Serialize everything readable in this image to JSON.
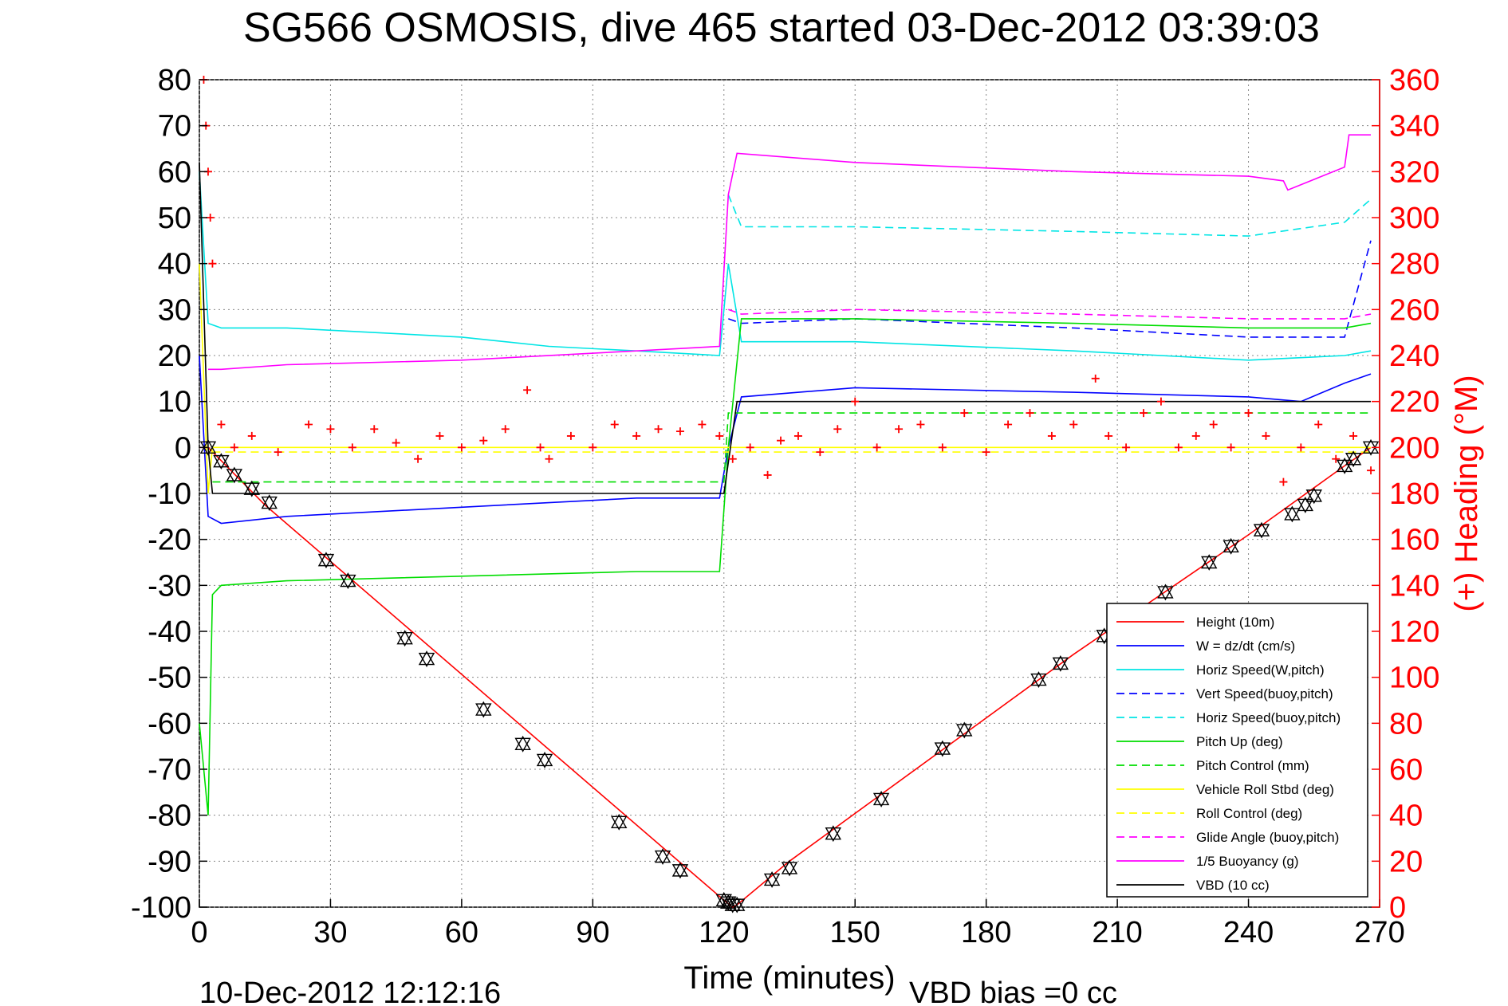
{
  "chart_data": {
    "type": "line",
    "title": "SG566 OSMOSIS, dive 465 started 03-Dec-2012 03:39:03",
    "xlabel": "Time (minutes)",
    "ylabel_right": "(+) Heading (°M)",
    "footer_left": "10-Dec-2012 12:12:16",
    "footer_right": "VBD bias =0 cc",
    "grid": true,
    "legend_position": "bottom-right",
    "xlim": [
      0,
      270
    ],
    "ylim": [
      -100,
      80
    ],
    "ylim_right": [
      0,
      360
    ],
    "xticks": [
      0,
      30,
      60,
      90,
      120,
      150,
      180,
      210,
      240,
      270
    ],
    "yticks": [
      80,
      70,
      60,
      50,
      40,
      30,
      20,
      10,
      0,
      -10,
      -20,
      -30,
      -40,
      -50,
      -60,
      -70,
      -80,
      -90,
      -100
    ],
    "yticks_right": [
      360,
      340,
      320,
      300,
      280,
      260,
      240,
      220,
      200,
      180,
      160,
      140,
      120,
      100,
      80,
      60,
      40,
      20,
      0
    ],
    "colors": {
      "axis_right": "#ff0000"
    },
    "series": [
      {
        "name": "Height (10m)",
        "color": "#ff0000",
        "dash": "solid",
        "x": [
          0,
          2,
          15,
          120,
          122,
          123,
          135,
          200,
          240,
          262,
          268
        ],
        "y": [
          0,
          0,
          -12.5,
          -98.5,
          -100,
          -99.5,
          -90,
          -45,
          -19,
          -4,
          0
        ]
      },
      {
        "name": "W = dz/dt (cm/s)",
        "color": "#0000ff",
        "dash": "solid",
        "x": [
          0,
          2,
          5,
          20,
          60,
          100,
          119,
          121,
          124,
          150,
          200,
          240,
          252,
          262,
          268
        ],
        "y": [
          20,
          -15,
          -16.5,
          -15,
          -13,
          -11,
          -11,
          0,
          11,
          13,
          12,
          11,
          10,
          14,
          16
        ]
      },
      {
        "name": "Horiz Speed(W,pitch)",
        "color": "#00e5e5",
        "dash": "solid",
        "x": [
          0,
          2,
          5,
          20,
          60,
          80,
          100,
          119,
          121,
          124,
          150,
          200,
          240,
          262,
          268
        ],
        "y": [
          60,
          27,
          26,
          26,
          24,
          22,
          21,
          20,
          40,
          23,
          23,
          21,
          19,
          20,
          21
        ]
      },
      {
        "name": "Vert Speed(buoy,pitch)",
        "color": "#0000ff",
        "dash": "dashed",
        "x": [
          121,
          124,
          150,
          200,
          240,
          262,
          268
        ],
        "y": [
          28,
          27,
          28,
          26,
          24,
          24,
          45
        ]
      },
      {
        "name": "Horiz Speed(buoy,pitch)",
        "color": "#00e5e5",
        "dash": "dashed",
        "x": [
          121,
          124,
          150,
          200,
          240,
          262,
          268
        ],
        "y": [
          55,
          48,
          48,
          47,
          46,
          49,
          54
        ]
      },
      {
        "name": "Pitch Up (deg)",
        "color": "#00dd00",
        "dash": "solid",
        "x": [
          0,
          2,
          3,
          5,
          20,
          60,
          100,
          119,
          121,
          124,
          150,
          200,
          240,
          262,
          268
        ],
        "y": [
          -60,
          -80,
          -32,
          -30,
          -29,
          -28,
          -27,
          -27,
          0,
          28,
          28,
          27,
          26,
          26,
          27
        ]
      },
      {
        "name": "Pitch Control (mm)",
        "color": "#00dd00",
        "dash": "dashed",
        "x": [
          3,
          120,
          121,
          268
        ],
        "y": [
          -7.5,
          -7.5,
          7.5,
          7.5
        ]
      },
      {
        "name": "Vehicle Roll Stbd (deg)",
        "color": "#ffff00",
        "dash": "solid",
        "x": [
          0,
          2,
          3,
          268
        ],
        "y": [
          40,
          -10,
          0,
          0
        ]
      },
      {
        "name": "Roll Control (deg)",
        "color": "#ffff00",
        "dash": "dashed",
        "x": [
          3,
          268
        ],
        "y": [
          -1,
          -1
        ]
      },
      {
        "name": "Glide Angle (buoy,pitch)",
        "color": "#ff00ff",
        "dash": "dashed",
        "x": [
          121,
          124,
          150,
          200,
          240,
          262,
          268
        ],
        "y": [
          30,
          29,
          30,
          29,
          28,
          28,
          29
        ]
      },
      {
        "name": "1/5 Buoyancy (g)",
        "color": "#ff00ff",
        "dash": "solid",
        "x": [
          2,
          5,
          20,
          60,
          100,
          119,
          121,
          123,
          150,
          200,
          240,
          248,
          249,
          262,
          263,
          268
        ],
        "y": [
          17,
          17,
          18,
          19,
          21,
          22,
          55,
          64,
          62,
          60,
          59,
          58,
          56,
          61,
          68,
          68
        ]
      },
      {
        "name": "VBD (10 cc)",
        "color": "#000000",
        "dash": "solid",
        "x": [
          0,
          2,
          3,
          120,
          123,
          268
        ],
        "y": [
          62,
          0,
          -10,
          -10,
          10,
          10
        ]
      }
    ],
    "heading_points": {
      "name": "(+) Heading (°M)",
      "color": "#ff0000",
      "x": [
        1,
        1.5,
        2,
        2.5,
        3,
        5,
        8,
        12,
        18,
        25,
        30,
        35,
        40,
        45,
        50,
        55,
        60,
        65,
        70,
        75,
        78,
        80,
        85,
        90,
        95,
        100,
        105,
        110,
        115,
        119,
        122,
        126,
        130,
        133,
        137,
        142,
        146,
        150,
        155,
        160,
        165,
        170,
        175,
        180,
        185,
        190,
        195,
        200,
        205,
        208,
        212,
        216,
        220,
        224,
        228,
        232,
        236,
        240,
        244,
        248,
        252,
        256,
        260,
        264,
        268
      ],
      "y": [
        360,
        340,
        320,
        300,
        280,
        210,
        200,
        205,
        198,
        210,
        208,
        200,
        208,
        202,
        195,
        205,
        200,
        203,
        208,
        225,
        200,
        195,
        205,
        200,
        210,
        205,
        208,
        207,
        210,
        205,
        195,
        200,
        188,
        203,
        205,
        198,
        208,
        220,
        200,
        208,
        210,
        200,
        215,
        198,
        210,
        215,
        205,
        210,
        230,
        205,
        200,
        215,
        220,
        200,
        205,
        210,
        200,
        215,
        205,
        185,
        200,
        210,
        195,
        205,
        190
      ]
    },
    "waypoint_markers": {
      "x": [
        2,
        5,
        8,
        12,
        16,
        29,
        34,
        47,
        52,
        65,
        74,
        79,
        96,
        106,
        110,
        120,
        121,
        122,
        123,
        131,
        135,
        145,
        156,
        170,
        175,
        192,
        197,
        207,
        221,
        231,
        236,
        243,
        250,
        253,
        255,
        262,
        264,
        268
      ],
      "y": [
        0,
        -3,
        -6,
        -9,
        -12,
        -24.5,
        -29,
        -41.5,
        -46,
        -57,
        -64.5,
        -68,
        -81.5,
        -89,
        -92,
        -98.5,
        -99,
        -99.5,
        -99.5,
        -94,
        -91.5,
        -84,
        -76.5,
        -65.5,
        -61.5,
        -50.5,
        -47,
        -41,
        -31.5,
        -25,
        -21.5,
        -18,
        -14.5,
        -12.5,
        -10.5,
        -4,
        -2.5,
        0
      ]
    }
  }
}
